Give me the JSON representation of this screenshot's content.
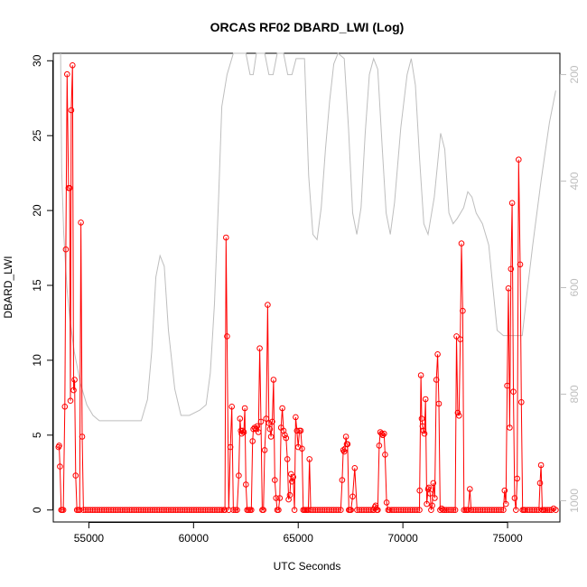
{
  "chart_data": {
    "type": "line",
    "title": "ORCAS RF02 DBARD_LWI (Log)",
    "xlabel": "UTC Seconds",
    "ylabel": "DBARD_LWI",
    "xlim": [
      53300,
      77500
    ],
    "ylim": [
      -0.8,
      30.5
    ],
    "y2lim": [
      1040,
      160
    ],
    "x_ticks": [
      55000,
      60000,
      65000,
      70000,
      75000
    ],
    "y_ticks": [
      0,
      5,
      10,
      15,
      20,
      25,
      30
    ],
    "y2_ticks": [
      200,
      400,
      600,
      800,
      1000
    ],
    "colors": {
      "series": "#ff0000",
      "secondary": "#bebebe",
      "axis": "#000000"
    },
    "grid": false,
    "series": [
      {
        "axis": "left",
        "style": "points-and-lines",
        "points": [
          [
            53550,
            4.2
          ],
          [
            53580,
            4.3
          ],
          [
            53620,
            2.9
          ],
          [
            53680,
            0.0
          ],
          [
            53720,
            0.0
          ],
          [
            53780,
            0.0
          ],
          [
            53850,
            6.9
          ],
          [
            53900,
            17.4
          ],
          [
            53960,
            29.1
          ],
          [
            54030,
            21.5
          ],
          [
            54080,
            21.5
          ],
          [
            54120,
            7.3
          ],
          [
            54160,
            26.7
          ],
          [
            54220,
            29.7
          ],
          [
            54270,
            8.0
          ],
          [
            54320,
            8.7
          ],
          [
            54370,
            2.3
          ],
          [
            54430,
            0.0
          ],
          [
            54500,
            0.0
          ],
          [
            54560,
            0.0
          ],
          [
            54620,
            19.2
          ],
          [
            54680,
            4.9
          ],
          [
            54740,
            0.0
          ],
          [
            61500,
            0.0
          ],
          [
            61550,
            18.2
          ],
          [
            61600,
            11.6
          ],
          [
            61680,
            0.0
          ],
          [
            61760,
            4.2
          ],
          [
            61830,
            6.9
          ],
          [
            61900,
            0.0
          ],
          [
            62000,
            0.0
          ],
          [
            62080,
            0.0
          ],
          [
            62160,
            2.3
          ],
          [
            62220,
            6.1
          ],
          [
            62260,
            5.3
          ],
          [
            62300,
            5.1
          ],
          [
            62350,
            5.3
          ],
          [
            62400,
            5.2
          ],
          [
            62450,
            6.8
          ],
          [
            62500,
            1.7
          ],
          [
            62560,
            0.0
          ],
          [
            62620,
            0.0
          ],
          [
            62700,
            0.0
          ],
          [
            62760,
            0.0
          ],
          [
            62820,
            4.6
          ],
          [
            62860,
            5.4
          ],
          [
            62920,
            5.5
          ],
          [
            62980,
            5.4
          ],
          [
            63040,
            5.6
          ],
          [
            63100,
            5.2
          ],
          [
            63160,
            10.8
          ],
          [
            63220,
            5.9
          ],
          [
            63280,
            0.0
          ],
          [
            63340,
            0.0
          ],
          [
            63400,
            4.0
          ],
          [
            63470,
            6.1
          ],
          [
            63540,
            13.7
          ],
          [
            63600,
            5.8
          ],
          [
            63650,
            5.4
          ],
          [
            63700,
            4.9
          ],
          [
            63760,
            5.9
          ],
          [
            63820,
            8.7
          ],
          [
            63880,
            2.0
          ],
          [
            63940,
            0.8
          ],
          [
            64000,
            0.0
          ],
          [
            64060,
            0.0
          ],
          [
            64120,
            0.8
          ],
          [
            64180,
            5.5
          ],
          [
            64240,
            6.8
          ],
          [
            64300,
            5.3
          ],
          [
            64360,
            5.0
          ],
          [
            64420,
            4.8
          ],
          [
            64480,
            3.4
          ],
          [
            64540,
            0.7
          ],
          [
            64600,
            1.0
          ],
          [
            64660,
            2.4
          ],
          [
            64700,
            1.9
          ],
          [
            64760,
            2.2
          ],
          [
            64820,
            0.0
          ],
          [
            64880,
            6.2
          ],
          [
            64940,
            5.3
          ],
          [
            65000,
            4.2
          ],
          [
            65060,
            5.3
          ],
          [
            65120,
            5.3
          ],
          [
            65180,
            4.1
          ],
          [
            65240,
            0.0
          ],
          [
            65300,
            0.0
          ],
          [
            65360,
            0.0
          ],
          [
            65420,
            0.0
          ],
          [
            65480,
            0.0
          ],
          [
            65540,
            3.4
          ],
          [
            65600,
            0.0
          ],
          [
            67100,
            2.0
          ],
          [
            67150,
            4.0
          ],
          [
            67200,
            3.9
          ],
          [
            67240,
            4.1
          ],
          [
            67280,
            4.9
          ],
          [
            67320,
            4.4
          ],
          [
            67360,
            4.4
          ],
          [
            67420,
            0.0
          ],
          [
            67470,
            0.0
          ],
          [
            67520,
            0.0
          ],
          [
            67600,
            0.9
          ],
          [
            67700,
            2.8
          ],
          [
            68600,
            0.0
          ],
          [
            68660,
            0.2
          ],
          [
            68700,
            0.3
          ],
          [
            68750,
            0.0
          ],
          [
            68800,
            0.0
          ],
          [
            68870,
            4.3
          ],
          [
            68920,
            5.2
          ],
          [
            68980,
            5.1
          ],
          [
            69040,
            5.0
          ],
          [
            69100,
            5.1
          ],
          [
            69150,
            3.7
          ],
          [
            69220,
            0.5
          ],
          [
            69300,
            0.0
          ],
          [
            69360,
            0.0
          ],
          [
            70800,
            1.3
          ],
          [
            70860,
            9.0
          ],
          [
            70900,
            6.1
          ],
          [
            70940,
            5.6
          ],
          [
            70980,
            5.3
          ],
          [
            71030,
            5.1
          ],
          [
            71080,
            7.4
          ],
          [
            71140,
            0.4
          ],
          [
            71200,
            1.4
          ],
          [
            71240,
            1.5
          ],
          [
            71300,
            1.1
          ],
          [
            71350,
            0.0
          ],
          [
            71400,
            0.3
          ],
          [
            71450,
            1.8
          ],
          [
            71520,
            0.8
          ],
          [
            71600,
            8.7
          ],
          [
            71660,
            10.4
          ],
          [
            71720,
            7.1
          ],
          [
            71780,
            0.0
          ],
          [
            71850,
            0.1
          ],
          [
            71920,
            0.0
          ],
          [
            72000,
            0.0
          ],
          [
            72080,
            0.0
          ],
          [
            72500,
            0.0
          ],
          [
            72560,
            11.6
          ],
          [
            72620,
            6.5
          ],
          [
            72680,
            6.3
          ],
          [
            72740,
            11.4
          ],
          [
            72800,
            17.8
          ],
          [
            72860,
            13.3
          ],
          [
            72920,
            0.0
          ],
          [
            73000,
            0.0
          ],
          [
            73060,
            0.0
          ],
          [
            73120,
            0.0
          ],
          [
            73200,
            1.4
          ],
          [
            73260,
            0.0
          ],
          [
            74800,
            0.0
          ],
          [
            74860,
            1.3
          ],
          [
            74920,
            0.4
          ],
          [
            74980,
            8.3
          ],
          [
            75040,
            14.8
          ],
          [
            75100,
            5.5
          ],
          [
            75160,
            16.1
          ],
          [
            75220,
            20.5
          ],
          [
            75280,
            7.9
          ],
          [
            75340,
            0.8
          ],
          [
            75400,
            0.0
          ],
          [
            75460,
            2.1
          ],
          [
            75530,
            23.4
          ],
          [
            75600,
            16.4
          ],
          [
            75660,
            7.2
          ],
          [
            75720,
            0.0
          ],
          [
            75780,
            0.0
          ],
          [
            75840,
            0.0
          ],
          [
            76500,
            0.0
          ],
          [
            76550,
            1.8
          ],
          [
            76600,
            3.0
          ],
          [
            76660,
            0.0
          ],
          [
            76720,
            0.0
          ],
          [
            76800,
            0.0
          ],
          [
            76900,
            0.0
          ],
          [
            77000,
            0.0
          ],
          [
            77100,
            0.0
          ],
          [
            77200,
            0.1
          ],
          [
            77300,
            0.0
          ]
        ],
        "zero_fill_ranges": [
          [
            54740,
            61500
          ],
          [
            65600,
            67100
          ],
          [
            67700,
            68600
          ],
          [
            69360,
            70800
          ],
          [
            72080,
            72500
          ],
          [
            73260,
            74800
          ],
          [
            75840,
            76500
          ]
        ]
      },
      {
        "axis": "right",
        "style": "line",
        "points": [
          [
            53650,
            160
          ],
          [
            53700,
            380
          ],
          [
            53800,
            500
          ],
          [
            53950,
            600
          ],
          [
            54100,
            660
          ],
          [
            54300,
            720
          ],
          [
            54600,
            780
          ],
          [
            54900,
            820
          ],
          [
            55200,
            840
          ],
          [
            55500,
            850
          ],
          [
            57500,
            850
          ],
          [
            57800,
            810
          ],
          [
            58000,
            720
          ],
          [
            58200,
            580
          ],
          [
            58400,
            540
          ],
          [
            58600,
            560
          ],
          [
            58800,
            680
          ],
          [
            59100,
            790
          ],
          [
            59400,
            840
          ],
          [
            59800,
            840
          ],
          [
            60300,
            830
          ],
          [
            60600,
            820
          ],
          [
            60800,
            760
          ],
          [
            61000,
            630
          ],
          [
            61200,
            430
          ],
          [
            61350,
            260
          ],
          [
            61600,
            200
          ],
          [
            61900,
            150
          ],
          [
            62500,
            160
          ],
          [
            62700,
            200
          ],
          [
            62850,
            200
          ],
          [
            63000,
            160
          ],
          [
            63400,
            160
          ],
          [
            63600,
            200
          ],
          [
            63800,
            200
          ],
          [
            64000,
            160
          ],
          [
            64300,
            160
          ],
          [
            64500,
            200
          ],
          [
            64700,
            200
          ],
          [
            64900,
            170
          ],
          [
            65300,
            170
          ],
          [
            65500,
            390
          ],
          [
            65700,
            500
          ],
          [
            65900,
            510
          ],
          [
            66100,
            450
          ],
          [
            66300,
            340
          ],
          [
            66500,
            250
          ],
          [
            66700,
            180
          ],
          [
            66900,
            160
          ],
          [
            67200,
            170
          ],
          [
            67400,
            300
          ],
          [
            67600,
            460
          ],
          [
            67800,
            500
          ],
          [
            68000,
            450
          ],
          [
            68200,
            310
          ],
          [
            68400,
            200
          ],
          [
            68600,
            170
          ],
          [
            68800,
            190
          ],
          [
            69000,
            330
          ],
          [
            69200,
            460
          ],
          [
            69400,
            500
          ],
          [
            69600,
            440
          ],
          [
            69900,
            300
          ],
          [
            70200,
            200
          ],
          [
            70400,
            170
          ],
          [
            70600,
            220
          ],
          [
            70800,
            360
          ],
          [
            71000,
            480
          ],
          [
            71200,
            500
          ],
          [
            71500,
            430
          ],
          [
            71800,
            310
          ],
          [
            72000,
            340
          ],
          [
            72200,
            460
          ],
          [
            72400,
            480
          ],
          [
            72600,
            470
          ],
          [
            72900,
            450
          ],
          [
            73100,
            420
          ],
          [
            73300,
            430
          ],
          [
            73500,
            460
          ],
          [
            73800,
            480
          ],
          [
            74100,
            520
          ],
          [
            74300,
            600
          ],
          [
            74500,
            680
          ],
          [
            74800,
            690
          ],
          [
            75300,
            690
          ],
          [
            75700,
            690
          ],
          [
            75900,
            620
          ],
          [
            76200,
            520
          ],
          [
            76600,
            400
          ],
          [
            77000,
            290
          ],
          [
            77300,
            230
          ]
        ]
      }
    ]
  }
}
